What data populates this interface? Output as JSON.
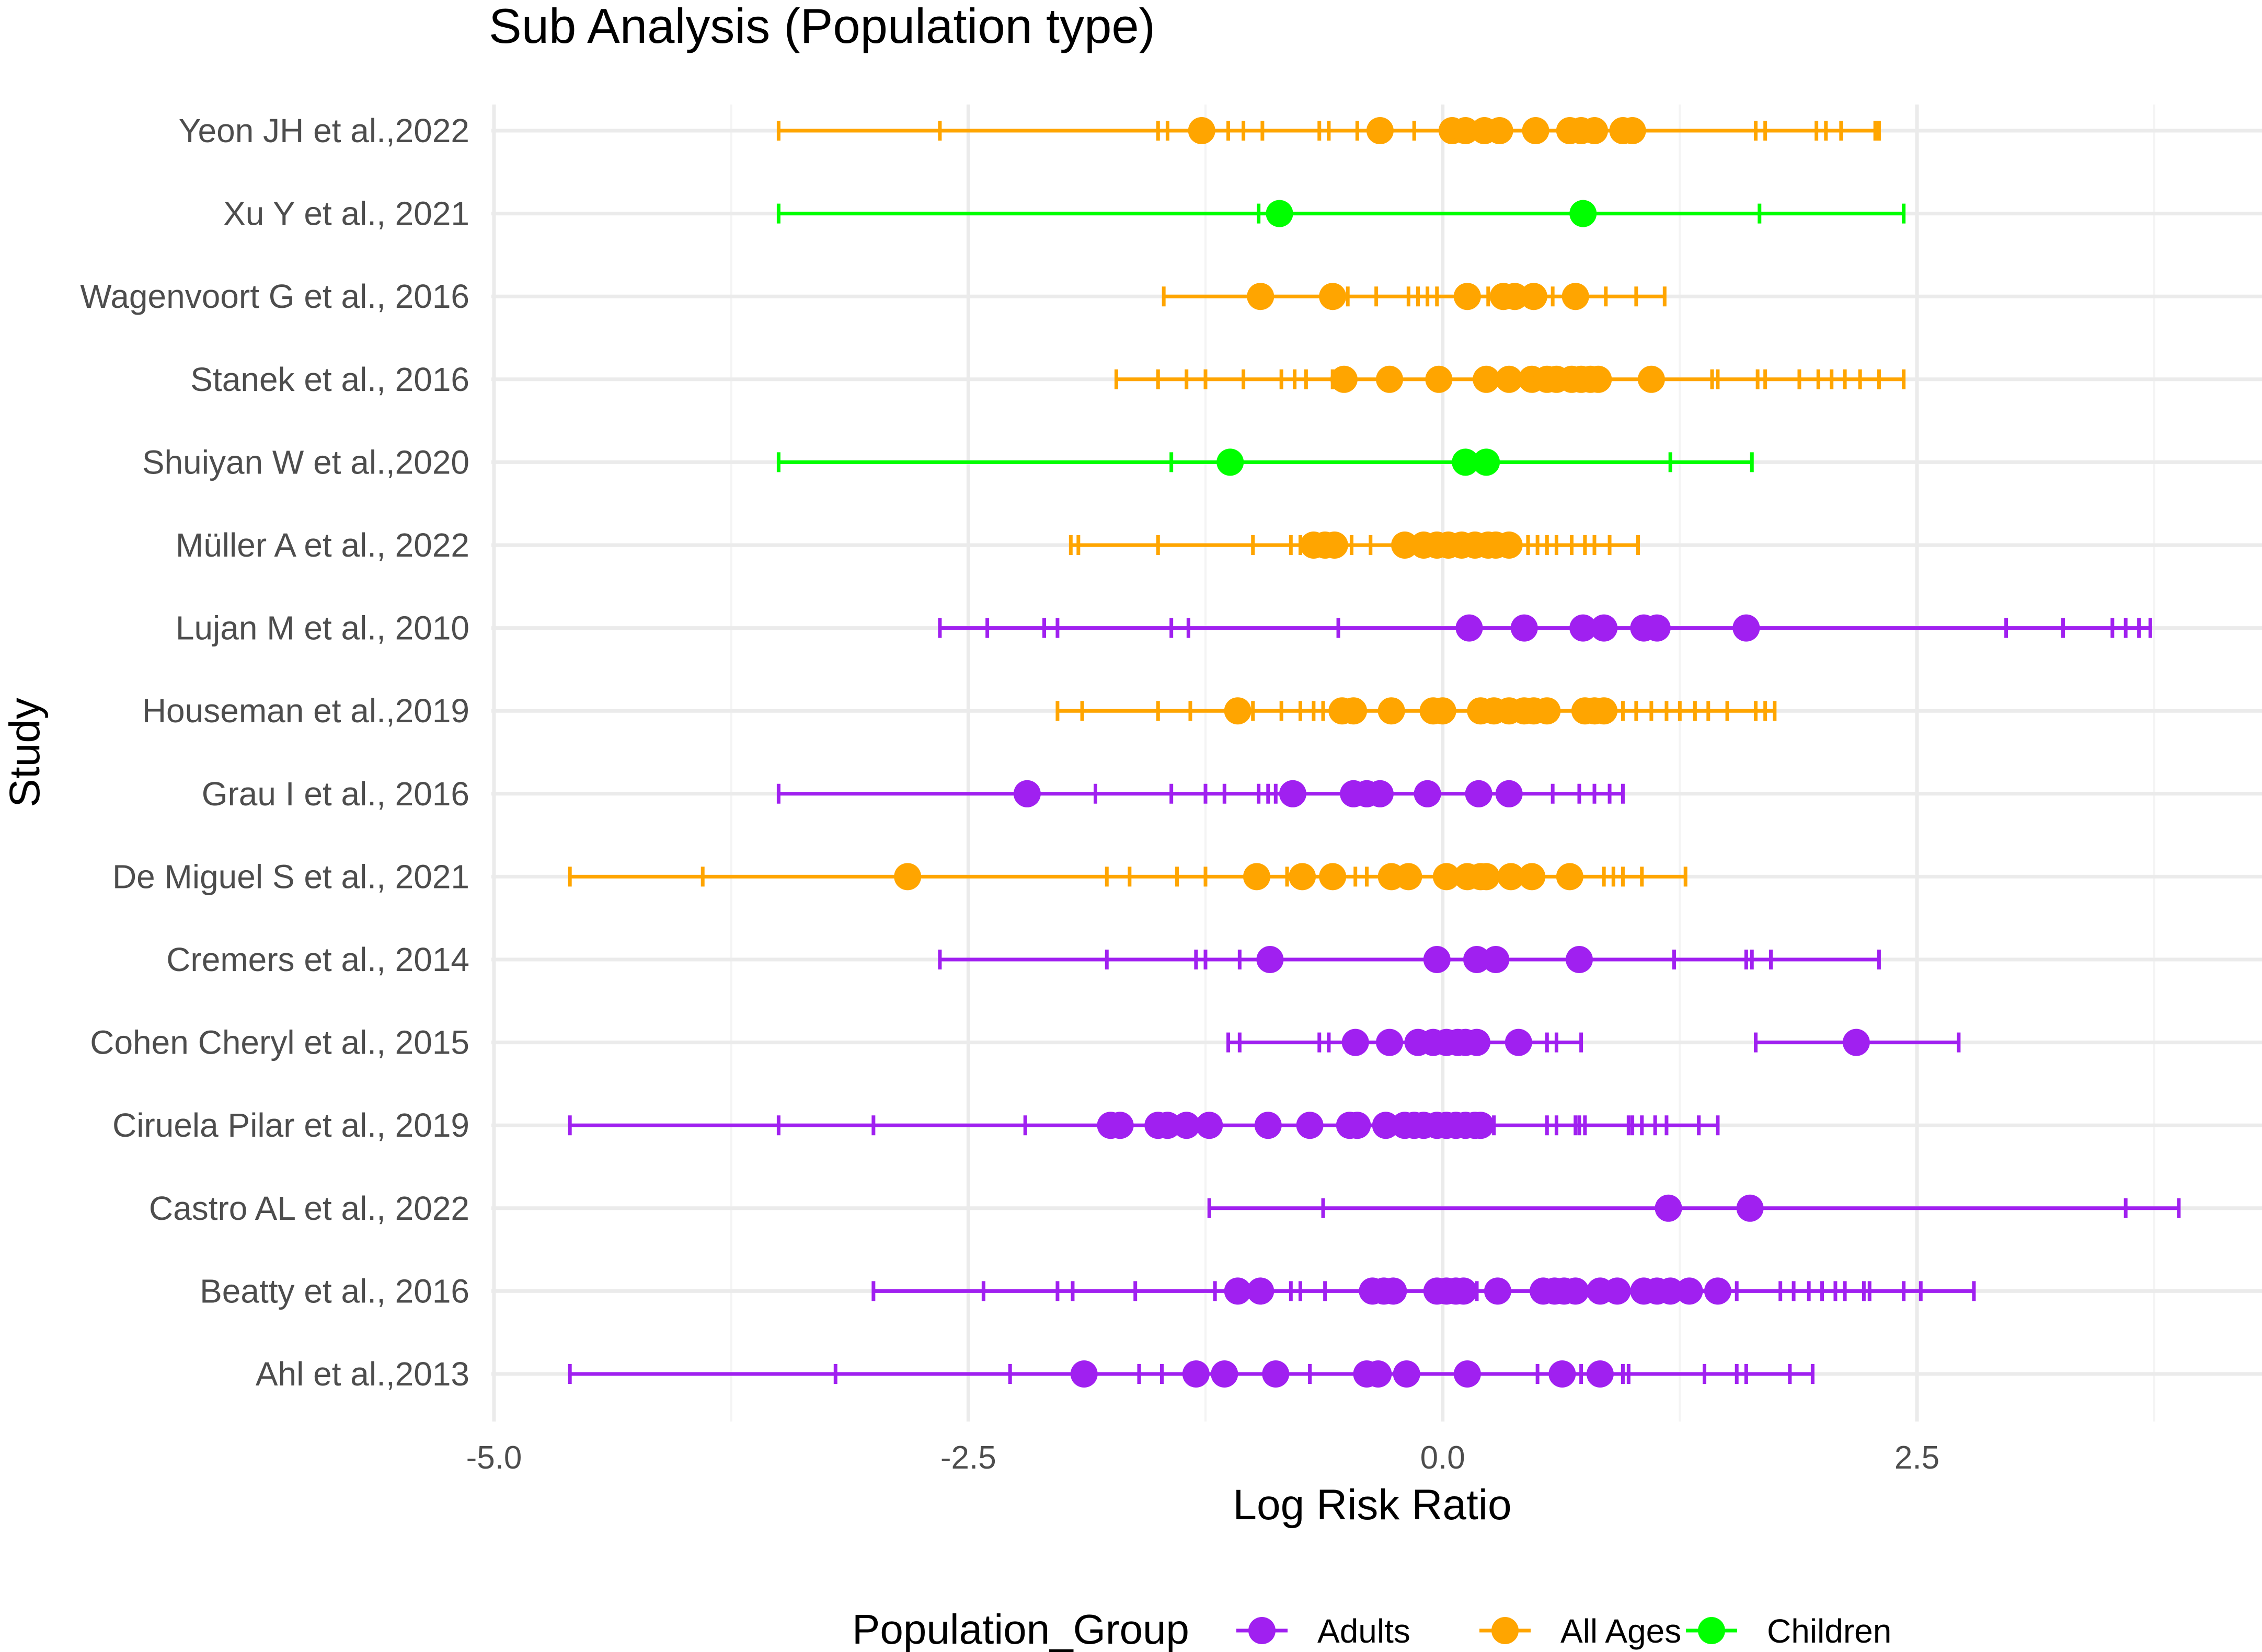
{
  "chart_data": {
    "type": "forest",
    "title": "Sub Analysis (Population type)",
    "xlabel": "Log Risk Ratio",
    "ylabel": "Study",
    "xlim": [
      -5.0,
      4.2
    ],
    "x_ticks": [
      -5.0,
      -2.5,
      0.0,
      2.5
    ],
    "x_tick_labels": [
      "-5.0",
      "-2.5",
      "0.0",
      "2.5"
    ],
    "grid": true,
    "legend": {
      "title": "Population_Group",
      "placement": "bottom",
      "entries": [
        {
          "label": "Adults",
          "color": "#a020f0"
        },
        {
          "label": "All Ages",
          "color": "#ffa500"
        },
        {
          "label": "Children",
          "color": "#00ff00"
        }
      ]
    },
    "studies": [
      {
        "name": "Yeon JH et al.,2022",
        "group": "All Ages",
        "ci": [
          -3.5,
          2.3
        ],
        "points": [
          -1.27,
          -0.33,
          0.05,
          0.12,
          0.22,
          0.3,
          0.49,
          0.67,
          0.73,
          0.8,
          0.95,
          1.0
        ],
        "ci_ticks": [
          -3.5,
          -2.65,
          -1.5,
          -1.45,
          -1.13,
          -1.05,
          -0.95,
          -0.65,
          -0.6,
          -0.45,
          -0.15,
          1.65,
          1.7,
          1.97,
          2.02,
          2.1,
          2.28,
          2.3
        ]
      },
      {
        "name": "Xu Y et al., 2021",
        "group": "Children",
        "ci": [
          -3.5,
          2.43
        ],
        "points": [
          -0.86,
          0.74
        ],
        "ci_ticks": [
          -3.5,
          -0.97,
          1.67,
          2.43
        ]
      },
      {
        "name": "Wagenvoort G et al., 2016",
        "group": "All Ages",
        "ci": [
          -1.47,
          1.17
        ],
        "points": [
          -0.96,
          -0.58,
          0.13,
          0.32,
          0.38,
          0.48,
          0.7
        ],
        "ci_ticks": [
          -1.47,
          -0.5,
          -0.35,
          -0.18,
          -0.13,
          -0.08,
          -0.03,
          0.24,
          0.58,
          0.86,
          1.02,
          1.17
        ]
      },
      {
        "name": "Stanek et al., 2016",
        "group": "All Ages",
        "ci": [
          -1.72,
          2.43
        ],
        "points": [
          -0.52,
          -0.28,
          -0.02,
          0.23,
          0.35,
          0.47,
          0.55,
          0.6,
          0.68,
          0.73,
          0.78,
          0.82,
          1.1
        ],
        "ci_ticks": [
          -1.72,
          -1.5,
          -1.35,
          -1.25,
          -1.05,
          -0.85,
          -0.78,
          -0.72,
          -0.58,
          1.42,
          1.45,
          1.66,
          1.7,
          1.88,
          1.98,
          2.05,
          2.12,
          2.2,
          2.3,
          2.43
        ]
      },
      {
        "name": "Shuiyan W et al.,2020",
        "group": "Children",
        "ci": [
          -3.5,
          1.63
        ],
        "points": [
          -1.12,
          0.12,
          0.23
        ],
        "ci_ticks": [
          -3.5,
          -1.43,
          1.2,
          1.63
        ]
      },
      {
        "name": "Müller A et al., 2022",
        "group": "All Ages",
        "ci": [
          -1.96,
          1.03
        ],
        "points": [
          -0.68,
          -0.62,
          -0.57,
          -0.2,
          -0.1,
          -0.03,
          0.03,
          0.1,
          0.17,
          0.24,
          0.28,
          0.35
        ],
        "ci_ticks": [
          -1.96,
          -1.92,
          -1.5,
          -1.0,
          -0.8,
          -0.75,
          -0.48,
          -0.38,
          0.45,
          0.5,
          0.55,
          0.6,
          0.68,
          0.75,
          0.8,
          0.88,
          1.03
        ]
      },
      {
        "name": "Lujan M et al., 2010",
        "group": "Adults",
        "ci": [
          -2.65,
          3.73
        ],
        "points": [
          0.14,
          0.43,
          0.74,
          0.85,
          1.06,
          1.13,
          1.6
        ],
        "ci_ticks": [
          -2.65,
          -2.4,
          -2.1,
          -2.03,
          -1.43,
          -1.34,
          -0.55,
          2.97,
          3.27,
          3.53,
          3.6,
          3.67,
          3.73
        ]
      },
      {
        "name": "Houseman et al.,2019",
        "group": "All Ages",
        "ci": [
          -2.03,
          1.75
        ],
        "points": [
          -1.08,
          -0.53,
          -0.47,
          -0.27,
          -0.05,
          0.0,
          0.2,
          0.27,
          0.35,
          0.43,
          0.48,
          0.55,
          0.75,
          0.8,
          0.85
        ],
        "ci_ticks": [
          -2.03,
          -1.9,
          -1.5,
          -1.33,
          -1.0,
          -0.85,
          -0.75,
          -0.68,
          -0.63,
          0.95,
          1.02,
          1.1,
          1.18,
          1.25,
          1.33,
          1.4,
          1.5,
          1.65,
          1.7,
          1.75
        ]
      },
      {
        "name": "Grau I et al., 2016",
        "group": "Adults",
        "ci": [
          -3.5,
          0.95
        ],
        "points": [
          -2.19,
          -0.79,
          -0.47,
          -0.4,
          -0.33,
          -0.08,
          0.19,
          0.35
        ],
        "ci_ticks": [
          -3.5,
          -1.83,
          -1.43,
          -1.25,
          -1.15,
          -0.97,
          -0.92,
          -0.88,
          0.58,
          0.72,
          0.8,
          0.88,
          0.95
        ]
      },
      {
        "name": "De Miguel S et al., 2021",
        "group": "All Ages",
        "ci": [
          -4.6,
          1.28
        ],
        "points": [
          -2.82,
          -0.98,
          -0.74,
          -0.58,
          -0.27,
          -0.18,
          0.02,
          0.13,
          0.2,
          0.23,
          0.36,
          0.47,
          0.67
        ],
        "ci_ticks": [
          -4.6,
          -3.9,
          -1.77,
          -1.65,
          -1.4,
          -1.25,
          -0.82,
          -0.46,
          -0.4,
          0.85,
          0.9,
          0.95,
          1.05,
          1.28
        ]
      },
      {
        "name": "Cremers et al., 2014",
        "group": "Adults",
        "ci": [
          -2.65,
          2.3
        ],
        "points": [
          -0.91,
          -0.03,
          0.18,
          0.28,
          0.72
        ],
        "ci_ticks": [
          -2.65,
          -1.77,
          -1.3,
          -1.25,
          -1.07,
          1.22,
          1.6,
          1.63,
          1.73,
          2.3
        ]
      },
      {
        "name": "Cohen Cheryl et al., 2015",
        "group": "Adults",
        "ci": [
          -1.13,
          2.72
        ],
        "points": [
          -0.46,
          -0.28,
          -0.13,
          -0.05,
          0.02,
          0.08,
          0.12,
          0.18,
          0.4,
          2.18
        ],
        "ci_ticks": [
          -1.13,
          -1.07,
          -0.65,
          -0.6,
          0.22,
          0.55,
          0.6,
          0.73,
          1.65,
          2.72
        ],
        "segments": [
          [
            -1.13,
            0.73
          ],
          [
            1.65,
            2.72
          ]
        ]
      },
      {
        "name": "Ciruela Pilar et al., 2019",
        "group": "Adults",
        "ci": [
          -4.6,
          1.45
        ],
        "points": [
          -1.75,
          -1.7,
          -1.5,
          -1.45,
          -1.35,
          -1.23,
          -0.92,
          -0.7,
          -0.49,
          -0.45,
          -0.3,
          -0.2,
          -0.15,
          -0.1,
          -0.03,
          0.02,
          0.07,
          0.12,
          0.17,
          0.2
        ],
        "ci_ticks": [
          -4.6,
          -3.5,
          -3.0,
          -2.2,
          0.27,
          0.55,
          0.6,
          0.7,
          0.72,
          0.75,
          0.98,
          1.0,
          1.05,
          1.12,
          1.18,
          1.35,
          1.45
        ]
      },
      {
        "name": "Castro AL et al., 2022",
        "group": "Adults",
        "ci": [
          -1.23,
          3.88
        ],
        "points": [
          1.19,
          1.62
        ],
        "ci_ticks": [
          -1.23,
          -0.63,
          3.6,
          3.88
        ]
      },
      {
        "name": "Beatty et al., 2016",
        "group": "Adults",
        "ci": [
          -3.0,
          2.8
        ],
        "points": [
          -1.08,
          -0.96,
          -0.37,
          -0.31,
          -0.26,
          -0.03,
          0.02,
          0.07,
          0.11,
          0.29,
          0.53,
          0.59,
          0.64,
          0.7,
          0.83,
          0.92,
          1.06,
          1.13,
          1.2,
          1.3,
          1.45
        ],
        "ci_ticks": [
          -3.0,
          -2.42,
          -2.03,
          -1.95,
          -1.62,
          -1.2,
          -0.8,
          -0.75,
          -0.62,
          0.18,
          1.55,
          1.78,
          1.85,
          1.93,
          2.0,
          2.07,
          2.12,
          2.22,
          2.25,
          2.43,
          2.52,
          2.8
        ]
      },
      {
        "name": "Ahl et al.,2013",
        "group": "Adults",
        "ci": [
          -4.6,
          1.95
        ],
        "points": [
          -1.89,
          -1.3,
          -1.15,
          -0.88,
          -0.4,
          -0.34,
          -0.19,
          0.13,
          0.63,
          0.83
        ],
        "ci_ticks": [
          -4.6,
          -3.2,
          -2.28,
          -1.6,
          -1.48,
          -0.7,
          0.5,
          0.73,
          0.95,
          0.98,
          1.38,
          1.55,
          1.6,
          1.83,
          1.95
        ]
      }
    ]
  }
}
